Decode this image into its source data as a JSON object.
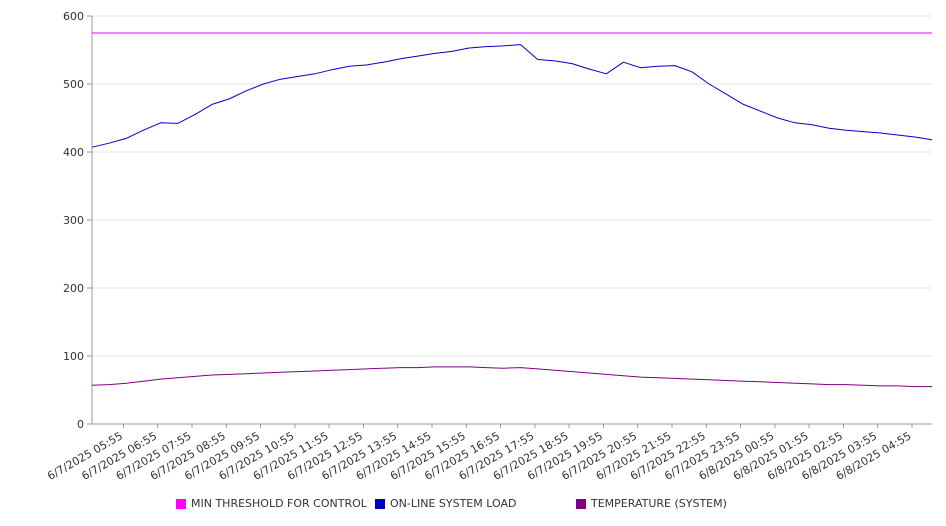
{
  "chart_data": {
    "type": "line",
    "title": "",
    "xlabel": "",
    "ylabel": "",
    "ylim": [
      0,
      600
    ],
    "yticks": [
      0,
      100,
      200,
      300,
      400,
      500,
      600
    ],
    "grid": true,
    "legend_position": "bottom",
    "x_tick_labels": [
      "6/7/2025 05:55",
      "6/7/2025 06:55",
      "6/7/2025 07:55",
      "6/7/2025 08:55",
      "6/7/2025 09:55",
      "6/7/2025 10:55",
      "6/7/2025 11:55",
      "6/7/2025 12:55",
      "6/7/2025 13:55",
      "6/7/2025 14:55",
      "6/7/2025 15:55",
      "6/7/2025 16:55",
      "6/7/2025 17:55",
      "6/7/2025 18:55",
      "6/7/2025 19:55",
      "6/7/2025 20:55",
      "6/7/2025 21:55",
      "6/7/2025 22:55",
      "6/7/2025 23:55",
      "6/8/2025 00:55",
      "6/8/2025 01:55",
      "6/8/2025 02:55",
      "6/8/2025 03:55",
      "6/8/2025 04:55"
    ],
    "x": [
      "6/7/2025 05:00",
      "6/7/2025 05:30",
      "6/7/2025 06:00",
      "6/7/2025 06:30",
      "6/7/2025 07:00",
      "6/7/2025 07:30",
      "6/7/2025 08:00",
      "6/7/2025 08:30",
      "6/7/2025 09:00",
      "6/7/2025 09:30",
      "6/7/2025 10:00",
      "6/7/2025 10:30",
      "6/7/2025 11:00",
      "6/7/2025 11:30",
      "6/7/2025 12:00",
      "6/7/2025 12:30",
      "6/7/2025 13:00",
      "6/7/2025 13:30",
      "6/7/2025 14:00",
      "6/7/2025 14:30",
      "6/7/2025 15:00",
      "6/7/2025 15:30",
      "6/7/2025 16:00",
      "6/7/2025 16:30",
      "6/7/2025 17:00",
      "6/7/2025 17:30",
      "6/7/2025 18:00",
      "6/7/2025 18:30",
      "6/7/2025 19:00",
      "6/7/2025 19:30",
      "6/7/2025 20:00",
      "6/7/2025 20:30",
      "6/7/2025 21:00",
      "6/7/2025 21:30",
      "6/7/2025 22:00",
      "6/7/2025 22:30",
      "6/7/2025 23:00",
      "6/7/2025 23:30",
      "6/8/2025 00:00",
      "6/8/2025 00:30",
      "6/8/2025 01:00",
      "6/8/2025 01:30",
      "6/8/2025 02:00",
      "6/8/2025 02:30",
      "6/8/2025 03:00",
      "6/8/2025 03:30",
      "6/8/2025 04:00",
      "6/8/2025 04:30",
      "6/8/2025 05:00",
      "6/8/2025 05:30"
    ],
    "series": [
      {
        "name": "MIN THRESHOLD FOR CONTROL",
        "color": "#ff00ff",
        "values": [
          575,
          575,
          575,
          575,
          575,
          575,
          575,
          575,
          575,
          575,
          575,
          575,
          575,
          575,
          575,
          575,
          575,
          575,
          575,
          575,
          575,
          575,
          575,
          575,
          575,
          575,
          575,
          575,
          575,
          575,
          575,
          575,
          575,
          575,
          575,
          575,
          575,
          575,
          575,
          575,
          575,
          575,
          575,
          575,
          575,
          575,
          575,
          575,
          575,
          575
        ]
      },
      {
        "name": "ON-LINE SYSTEM LOAD",
        "color": "#0000cc",
        "values": [
          407,
          413,
          420,
          432,
          443,
          442,
          455,
          470,
          478,
          490,
          500,
          507,
          511,
          515,
          521,
          526,
          528,
          532,
          537,
          541,
          545,
          548,
          553,
          555,
          556,
          558,
          536,
          534,
          530,
          522,
          515,
          532,
          524,
          526,
          527,
          518,
          500,
          485,
          470,
          460,
          450,
          443,
          440,
          435,
          432,
          430,
          428,
          425,
          422,
          418
        ]
      },
      {
        "name": "TEMPERATURE (SYSTEM)",
        "color": "#800080",
        "values": [
          57,
          58,
          60,
          63,
          66,
          68,
          70,
          72,
          73,
          74,
          75,
          76,
          77,
          78,
          79,
          80,
          81,
          82,
          83,
          83,
          84,
          84,
          84,
          83,
          82,
          83,
          81,
          79,
          77,
          75,
          73,
          71,
          69,
          68,
          67,
          66,
          65,
          64,
          63,
          62,
          61,
          60,
          59,
          58,
          58,
          57,
          56,
          56,
          55,
          55
        ]
      }
    ]
  }
}
